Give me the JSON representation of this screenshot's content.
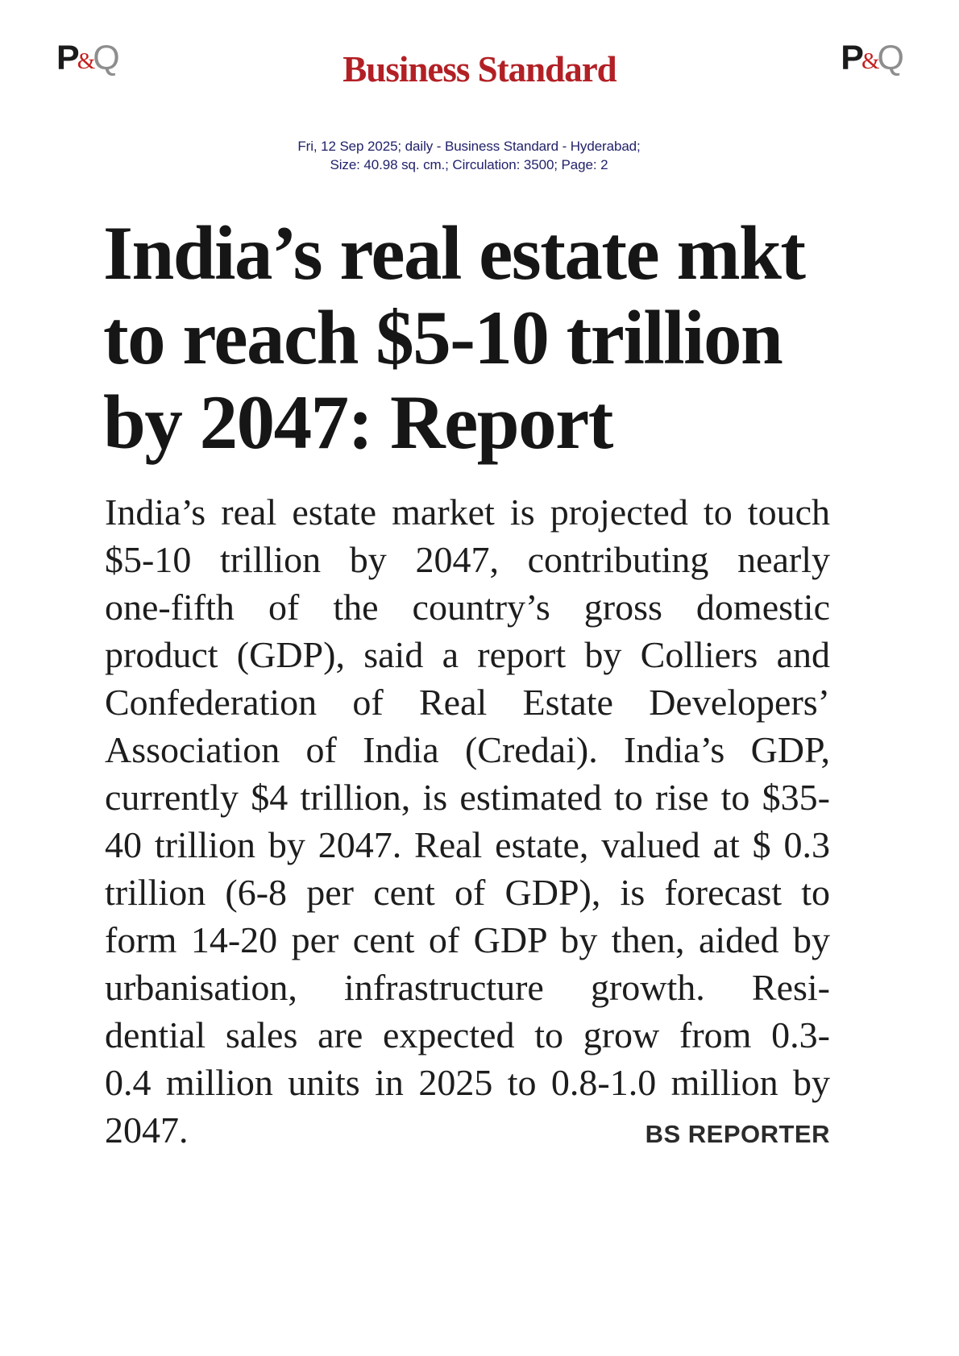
{
  "logo": {
    "p": "P",
    "amp": "&",
    "q": "Q"
  },
  "masthead": {
    "title": "Business Standard"
  },
  "meta": {
    "line1": "Fri, 12 Sep 2025; daily - Business Standard - Hyderabad;",
    "line2": "Size: 40.98 sq. cm.; Circulation: 3500; Page: 2"
  },
  "article": {
    "headline_lines": [
      "India’s real estate mkt",
      "to reach $5-10 trillion",
      "by 2047: Report"
    ],
    "body_lines": [
      "India’s real estate market is projected to touch",
      "$5-10 trillion by 2047, contributing nearly",
      "one-fifth of the country’s gross domestic",
      "product (GDP), said a report by Colliers and",
      "Confederation of Real Estate Developers’",
      "Association of India (Credai). India’s GDP,",
      "currently $4 trillion, is estimated to rise to $35-",
      "40 trillion by 2047. Real estate, valued at $ 0.3",
      "trillion (6-8 per cent of GDP), is forecast to",
      "form 14-20 per cent of GDP by then, aided by",
      "urbanisation, infrastructure growth. Resi-",
      "dential sales are expected to grow from 0.3-",
      "0.4 million units in 2025 to 0.8-1.0 million by"
    ],
    "closing_line": "2047.",
    "byline": "BS REPORTER"
  },
  "colors": {
    "masthead_red": "#b22025",
    "meta_navy": "#22226b",
    "ink": "#1d1d1d",
    "headline_ink": "#161616",
    "p_black": "#1b1b1b",
    "amp_red": "#c41e1e",
    "q_gray": "#8e8e8e",
    "byline_ink": "#2b2b2b"
  }
}
